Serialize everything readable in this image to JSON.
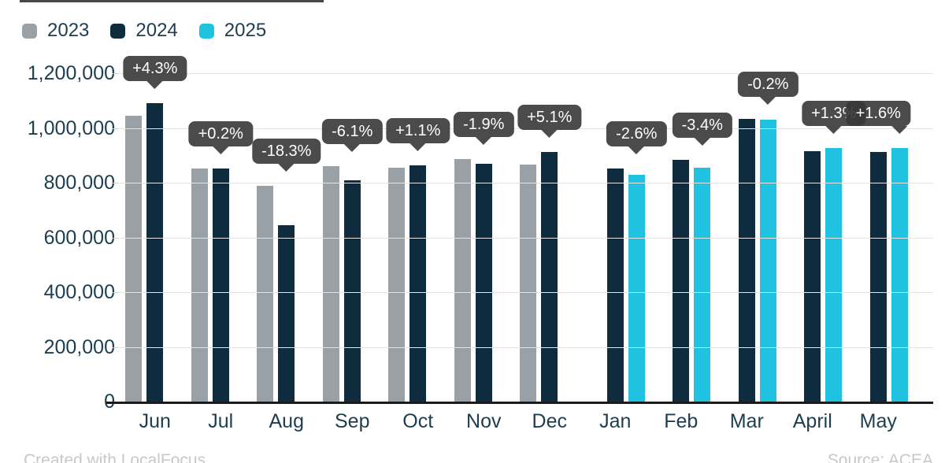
{
  "legend": {
    "items": [
      {
        "label": "2023",
        "color": "#9AA1A6"
      },
      {
        "label": "2024",
        "color": "#0F2B3E"
      },
      {
        "label": "2025",
        "color": "#1FC3E1"
      }
    ]
  },
  "footer": {
    "credit": "Created with LocalFocus",
    "source": "Source: ACEA"
  },
  "colors": {
    "badge_background": "rgba(55,55,55,0.9)",
    "axis_text": "#1D3D50",
    "gridline": "#E4E4E4",
    "axis_line": "#1A1A1A",
    "footer_text": "#C5C9CC"
  },
  "chart_data": {
    "type": "bar",
    "title": "",
    "categories": [
      "Jun",
      "Jul",
      "Aug",
      "Sep",
      "Oct",
      "Nov",
      "Dec",
      "Jan",
      "Feb",
      "Mar",
      "April",
      "May"
    ],
    "series": [
      {
        "name": "2023",
        "color": "#9AA1A6",
        "values": [
          1045000,
          851000,
          788000,
          861000,
          855000,
          886000,
          867000,
          null,
          null,
          null,
          null,
          null
        ]
      },
      {
        "name": "2024",
        "color": "#0F2B3E",
        "values": [
          1090000,
          853000,
          644000,
          809000,
          864000,
          869000,
          911000,
          852000,
          884000,
          1032000,
          914000,
          912000
        ]
      },
      {
        "name": "2025",
        "color": "#1FC3E1",
        "values": [
          null,
          null,
          null,
          null,
          null,
          null,
          null,
          830000,
          854000,
          1030000,
          926000,
          927000
        ]
      }
    ],
    "change_labels": [
      "+4.3%",
      "+0.2%",
      "-18.3%",
      "-6.1%",
      "+1.1%",
      "-1.9%",
      "+5.1%",
      "-2.6%",
      "-3.4%",
      "-0.2%",
      "+1.3%",
      "+1.6%"
    ],
    "y_axis": {
      "ticks": [
        "1,200,000",
        "1,000,000",
        "800,000",
        "600,000",
        "400,000",
        "200,000",
        "0"
      ],
      "min": 0,
      "max": 1200000
    },
    "grid": true,
    "legend_position": "top-left"
  }
}
